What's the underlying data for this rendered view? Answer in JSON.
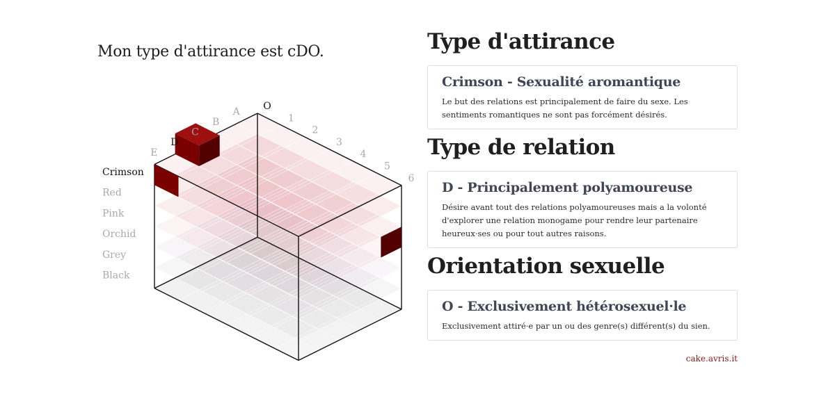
{
  "summary": "Mon type d'attirance est cDO.",
  "cube": {
    "colour_labels": [
      "Crimson",
      "Red",
      "Pink",
      "Orchid",
      "Grey",
      "Black"
    ],
    "letter_labels": [
      "A",
      "B",
      "C",
      "D",
      "E"
    ],
    "number_labels": [
      "O",
      "1",
      "2",
      "3",
      "4",
      "5",
      "6"
    ],
    "selected": {
      "colour": "Crimson",
      "letter": "D",
      "number": "O"
    },
    "highlight_colors": {
      "top": "#9e0f0f",
      "left": "#7a0000",
      "right": "#520000",
      "active_label": "#111111",
      "inactive_label": "#a8a8a8"
    }
  },
  "sections": [
    {
      "title": "Type d'attirance",
      "card_title": "Crimson - Sexualité aromantique",
      "card_text": "Le but des relations est principalement de faire du sexe. Les sentiments romantiques ne sont pas forcément désirés."
    },
    {
      "title": "Type de relation",
      "card_title": "D - Principalement polyamoureuse",
      "card_text": "Désire avant tout des relations polyamoureuses mais a la volonté d'explorer une relation monogame pour rendre leur partenaire heureux·ses ou pour tout autres raisons."
    },
    {
      "title": "Orientation sexuelle",
      "card_title": "O - Exclusivement hétérosexuel·le",
      "card_text": "Exclusivement attiré·e par un ou des genre(s) différent(s) du sien."
    }
  ],
  "credit": "cake.avris.it"
}
